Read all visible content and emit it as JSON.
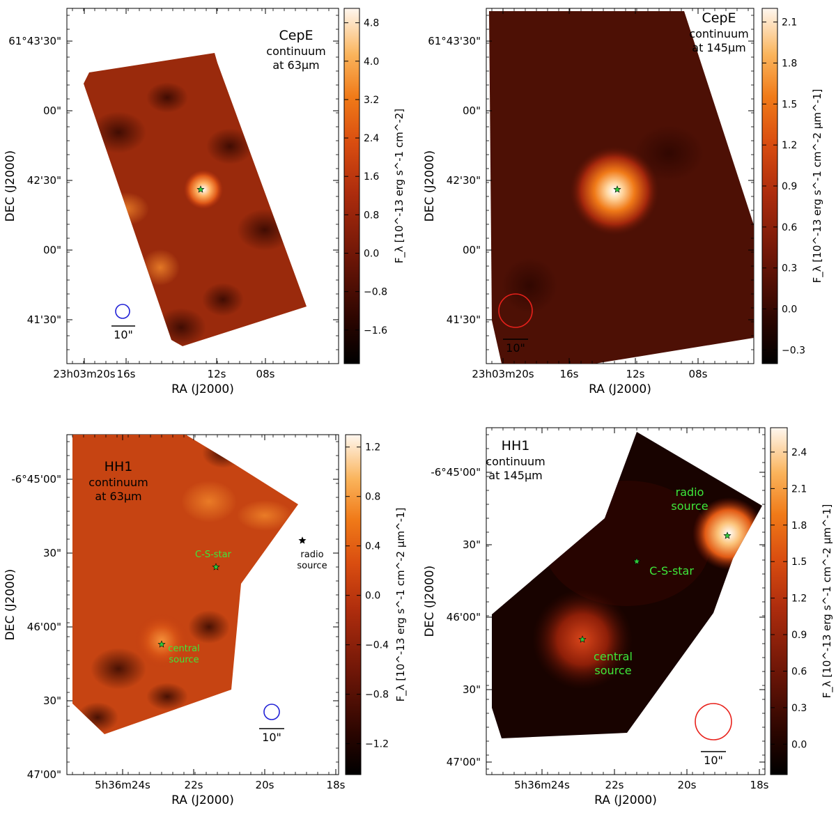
{
  "chart_data": [
    {
      "type": "heatmap",
      "object": "CepE",
      "label_line1": "continuum",
      "label_line2": "at 63μm",
      "xlabel": "RA (J2000)",
      "ylabel": "DEC (J2000)",
      "colorbar_label": "F_λ [10^-13 erg s^-1 cm^-2]",
      "colorbar_ticks": [
        "4.8",
        "4.0",
        "3.2",
        "2.4",
        "1.6",
        "0.8",
        "0.0",
        "−0.8",
        "−1.6"
      ],
      "colorbar_range": [
        -2.3,
        5.1
      ],
      "x_ticks": [
        "23h03m20s",
        "16s",
        "12s",
        "08s"
      ],
      "y_ticks": [
        "61°43'30\"",
        "00\"",
        "42'30\"",
        "00\"",
        "41'30\""
      ],
      "beam_color": "#1f1fd6",
      "scale_bar": "10\"",
      "stars": [
        {
          "name": "",
          "color": "#2ec93a"
        }
      ]
    },
    {
      "type": "heatmap",
      "object": "CepE",
      "label_line1": "continuum",
      "label_line2": "at 145μm",
      "xlabel": "RA (J2000)",
      "ylabel": "DEC (J2000)",
      "colorbar_label": "F_λ [10^-13 erg s^-1 cm^-2 μm^-1]",
      "colorbar_ticks": [
        "2.1",
        "1.8",
        "1.5",
        "1.2",
        "0.9",
        "0.6",
        "0.3",
        "0.0",
        "−0.3"
      ],
      "colorbar_range": [
        -0.4,
        2.2
      ],
      "x_ticks": [
        "23h03m20s",
        "16s",
        "12s",
        "08s"
      ],
      "y_ticks": [
        "61°43'30\"",
        "00\"",
        "42'30\"",
        "00\"",
        "41'30\""
      ],
      "beam_color": "#e8211b",
      "scale_bar": "10\"",
      "stars": [
        {
          "name": "",
          "color": "#2ec93a"
        }
      ]
    },
    {
      "type": "heatmap",
      "object": "HH1",
      "label_line1": "continuum",
      "label_line2": "at 63μm",
      "xlabel": "RA (J2000)",
      "ylabel": "DEC (J2000)",
      "colorbar_label": "F_λ [10^-13 erg s^-1 cm^-2 μm^-1]",
      "colorbar_ticks": [
        "1.2",
        "0.8",
        "0.4",
        "0.0",
        "−0.4",
        "−0.8",
        "−1.2"
      ],
      "colorbar_range": [
        -1.45,
        1.3
      ],
      "x_ticks": [
        "5h36m24s",
        "22s",
        "20s",
        "18s"
      ],
      "y_ticks": [
        "-6°45'00\"",
        "30\"",
        "46'00\"",
        "30\"",
        "47'00\""
      ],
      "beam_color": "#1f1fd6",
      "scale_bar": "10\"",
      "stars": [
        {
          "name": "C-S-star",
          "color": "#2ec93a"
        },
        {
          "name": "central\nsource",
          "color": "#2ec93a"
        },
        {
          "name": "radio\nsource",
          "color": "#000000"
        }
      ]
    },
    {
      "type": "heatmap",
      "object": "HH1",
      "label_line1": "continuum",
      "label_line2": "at 145μm",
      "xlabel": "RA (J2000)",
      "ylabel": "DEC (J2000)",
      "colorbar_label": "F_λ [10^-13 erg s^-1 cm^-2 μm^-1]",
      "colorbar_ticks": [
        "2.4",
        "2.1",
        "1.8",
        "1.5",
        "1.2",
        "0.9",
        "0.6",
        "0.3",
        "0.0"
      ],
      "colorbar_range": [
        -0.25,
        2.6
      ],
      "x_ticks": [
        "5h36m24s",
        "22s",
        "20s",
        "18s"
      ],
      "y_ticks": [
        "-6°45'00\"",
        "30\"",
        "46'00\"",
        "30\"",
        "47'00\""
      ],
      "beam_color": "#e8211b",
      "scale_bar": "10\"",
      "stars": [
        {
          "name": "radio\nsource",
          "color": "#2ec93a"
        },
        {
          "name": "C-S-star",
          "color": "#2ec93a"
        },
        {
          "name": "central\nsource",
          "color": "#2ec93a"
        }
      ]
    }
  ]
}
